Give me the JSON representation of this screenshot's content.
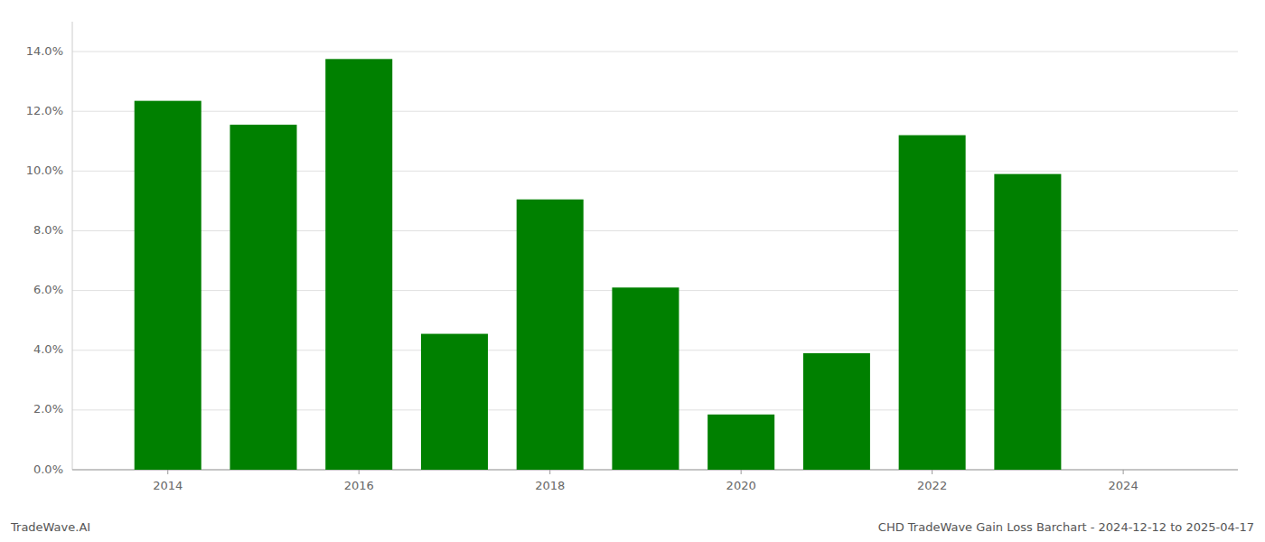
{
  "chart_data": {
    "type": "bar",
    "x": [
      2014,
      2015,
      2016,
      2017,
      2018,
      2019,
      2020,
      2021,
      2022,
      2023
    ],
    "values": [
      0.1235,
      0.1155,
      0.1375,
      0.0455,
      0.0905,
      0.061,
      0.0185,
      0.039,
      0.112,
      0.099
    ],
    "color": "#008000",
    "xlim": [
      2013.0,
      2025.2
    ],
    "xticks": [
      2014,
      2016,
      2018,
      2020,
      2022,
      2024
    ],
    "ylim": [
      0,
      0.15
    ],
    "yticks": [
      {
        "value": 0.0,
        "label": "0.0%"
      },
      {
        "value": 0.02,
        "label": "2.0%"
      },
      {
        "value": 0.04,
        "label": "4.0%"
      },
      {
        "value": 0.06,
        "label": "6.0%"
      },
      {
        "value": 0.08,
        "label": "8.0%"
      },
      {
        "value": 0.1,
        "label": "10.0%"
      },
      {
        "value": 0.12,
        "label": "12.0%"
      },
      {
        "value": 0.14,
        "label": "14.0%"
      }
    ],
    "grid": true,
    "annotations": [
      "TradeWave.AI",
      "CHD TradeWave Gain Loss Barchart - 2024-12-12 to 2025-04-17"
    ]
  }
}
